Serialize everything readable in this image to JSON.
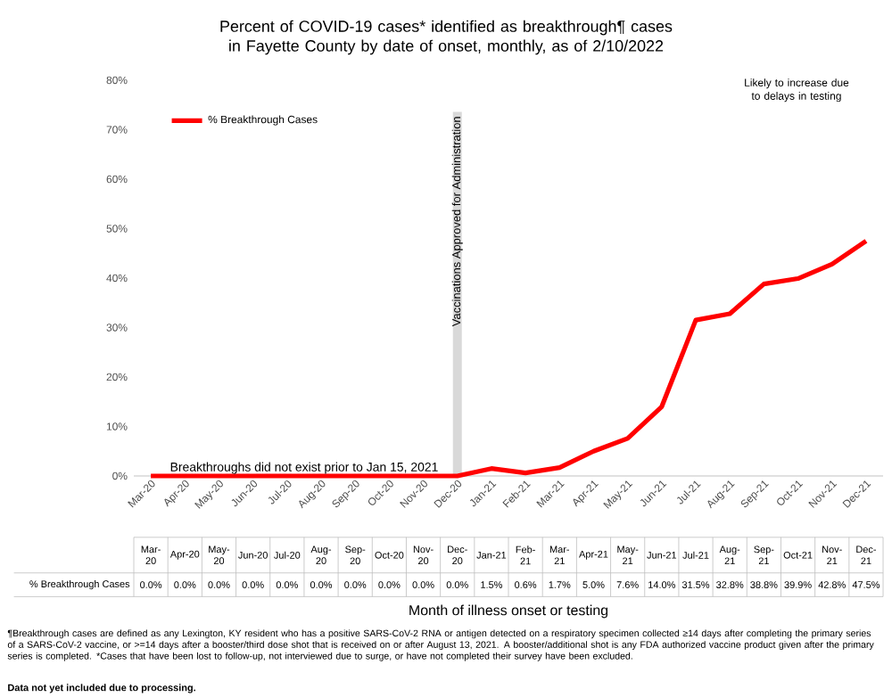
{
  "chart_data": {
    "type": "line",
    "title": "Percent of COVID-19 cases* identified as breakthrough¶ cases in Fayette County by date of onset, monthly, as of 2/10/2022",
    "categories": [
      "Mar-20",
      "Apr-20",
      "May-20",
      "Jun-20",
      "Jul-20",
      "Aug-20",
      "Sep-20",
      "Oct-20",
      "Nov-20",
      "Dec-20",
      "Jan-21",
      "Feb-21",
      "Mar-21",
      "Apr-21",
      "May-21",
      "Jun-21",
      "Jul-21",
      "Aug-21",
      "Sep-21",
      "Oct-21",
      "Nov-21",
      "Dec-21"
    ],
    "series": [
      {
        "name": "% Breakthrough Cases",
        "color": "#ff0000",
        "values": [
          0.0,
          0.0,
          0.0,
          0.0,
          0.0,
          0.0,
          0.0,
          0.0,
          0.0,
          0.0,
          1.5,
          0.6,
          1.7,
          5.0,
          7.6,
          14.0,
          31.5,
          32.8,
          38.8,
          39.9,
          42.8,
          47.5
        ],
        "value_labels": [
          "0.0%",
          "0.0%",
          "0.0%",
          "0.0%",
          "0.0%",
          "0.0%",
          "0.0%",
          "0.0%",
          "0.0%",
          "0.0%",
          "1.5%",
          "0.6%",
          "1.7%",
          "5.0%",
          "7.6%",
          "14.0%",
          "31.5%",
          "32.8%",
          "38.8%",
          "39.9%",
          "42.8%",
          "47.5%"
        ]
      }
    ],
    "ylim": [
      0,
      80
    ],
    "yticks": [
      {
        "value": 0,
        "label": "0%"
      },
      {
        "value": 10,
        "label": "10%"
      },
      {
        "value": 20,
        "label": "20%"
      },
      {
        "value": 30,
        "label": "30%"
      },
      {
        "value": 40,
        "label": "40%"
      },
      {
        "value": 50,
        "label": "50%"
      },
      {
        "value": 60,
        "label": "60%"
      },
      {
        "value": 70,
        "label": "70%"
      },
      {
        "value": 80,
        "label": "80%"
      }
    ],
    "ref_lines": [
      {
        "axis": "x",
        "value": "Dec-20",
        "label": "Vaccinations Approved for Administration",
        "color": "#d9d9d9"
      }
    ],
    "annotations": [
      "Breakthroughs did not exist prior to Jan 15, 2021",
      "Likely to increase due to delays in testing",
      "¶Breakthrough cases are defined as any Lexington, KY resident who has a positive SARS-CoV-2 RNA or antigen detected on a respiratory specimen collected ≥14 days after completing the primary series of a SARS-CoV-2 vaccine, or >=14 days after a booster/third dose shot that is received on or after August 13, 2021.  A booster/additional shot is any FDA authorized vaccine product given after the primary series is completed. *Cases that have been lost to follow-up, not interviewed due to surge, or have not completed their survey have been excluded.",
      "Data not yet included due to processing.",
      "Month of illness onset or testing"
    ],
    "legend": "top left",
    "marker": "none",
    "line_style": "solid",
    "grid": false
  }
}
